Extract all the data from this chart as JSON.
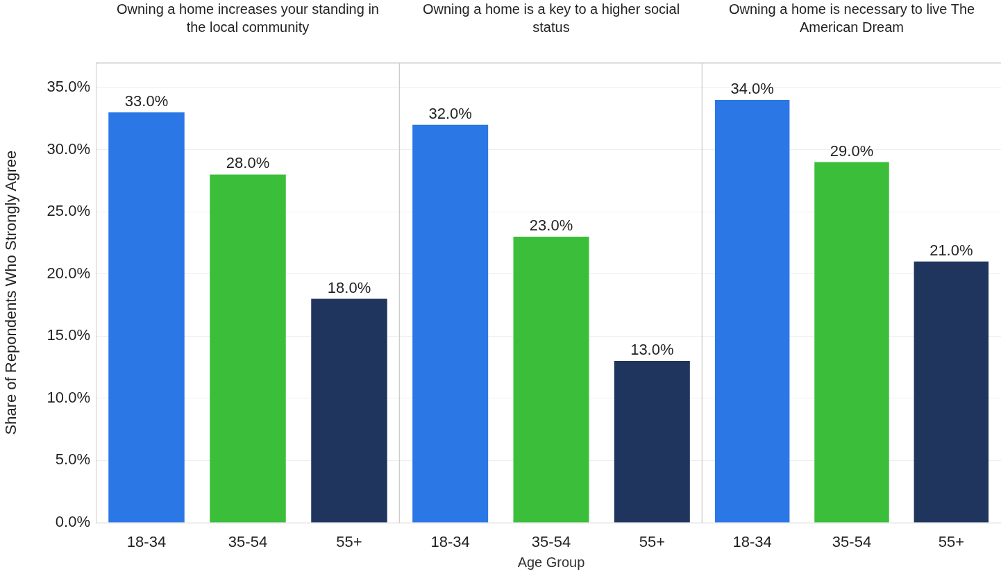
{
  "chart_data": [
    {
      "type": "bar",
      "title": "Owning a home increases your standing in the local community",
      "ylabel": "Share of Repondents Who Strongly Agree",
      "categories": [
        "18-34",
        "35-54",
        "55+"
      ],
      "values": [
        33,
        28,
        18
      ],
      "colors": [
        "#2b77e6",
        "#3bbf3b",
        "#1f355e"
      ],
      "value_labels": [
        "33.0%",
        "28.0%",
        "18.0%"
      ],
      "ylim": [
        0,
        37
      ],
      "yticks": [
        {
          "value": 0,
          "label": "0.0%"
        },
        {
          "value": 5,
          "label": "5.0%"
        },
        {
          "value": 10,
          "label": "10.0%"
        },
        {
          "value": 15,
          "label": "15.0%"
        },
        {
          "value": 20,
          "label": "20.0%"
        },
        {
          "value": 25,
          "label": "25.0%"
        },
        {
          "value": 30,
          "label": "30.0%"
        },
        {
          "value": 35,
          "label": "35.0%"
        }
      ],
      "grid": "y"
    },
    {
      "type": "bar",
      "title": "Owning a home is a key to a higher social status",
      "xlabel": "Age Group",
      "categories": [
        "18-34",
        "35-54",
        "55+"
      ],
      "values": [
        32,
        23,
        13
      ],
      "colors": [
        "#2b77e6",
        "#3bbf3b",
        "#1f355e"
      ],
      "value_labels": [
        "32.0%",
        "23.0%",
        "13.0%"
      ],
      "ylim": [
        0,
        37
      ],
      "yticks": [
        0,
        5,
        10,
        15,
        20,
        25,
        30,
        35
      ],
      "grid": "y",
      "tick_labels": "x"
    },
    {
      "type": "bar",
      "title": "Owning a home is necessary to live The American Dream",
      "categories": [
        "18-34",
        "35-54",
        "55+"
      ],
      "values": [
        34,
        29,
        21
      ],
      "colors": [
        "#2b77e6",
        "#3bbf3b",
        "#1f355e"
      ],
      "value_labels": [
        "34.0%",
        "29.0%",
        "21.0%"
      ],
      "ylim": [
        0,
        37
      ],
      "yticks": [
        0,
        5,
        10,
        15,
        20,
        25,
        30,
        35
      ],
      "grid": "y",
      "tick_labels": "x"
    }
  ]
}
